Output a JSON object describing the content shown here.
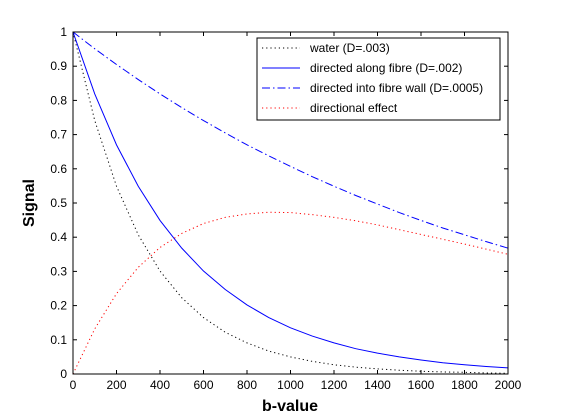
{
  "chart_data": {
    "type": "line",
    "title": "",
    "xlabel": "b-value",
    "ylabel": "Signal",
    "xlim": [
      0,
      2000
    ],
    "ylim": [
      0,
      1
    ],
    "x_ticks": [
      0,
      200,
      400,
      600,
      800,
      1000,
      1200,
      1400,
      1600,
      1800,
      2000
    ],
    "y_ticks": [
      0,
      0.1,
      0.2,
      0.3,
      0.4,
      0.5,
      0.6,
      0.7,
      0.8,
      0.9,
      1
    ],
    "grid": false,
    "legend_position": "top-right",
    "x": [
      0,
      100,
      200,
      300,
      400,
      500,
      600,
      700,
      800,
      900,
      1000,
      1100,
      1200,
      1300,
      1400,
      1500,
      1600,
      1700,
      1800,
      1900,
      2000
    ],
    "series": [
      {
        "name": "water (D=.003)",
        "color": "#000000",
        "style": "dotted",
        "values": [
          1,
          0.741,
          0.549,
          0.407,
          0.301,
          0.223,
          0.165,
          0.122,
          0.091,
          0.067,
          0.05,
          0.037,
          0.027,
          0.02,
          0.015,
          0.011,
          0.008,
          0.006,
          0.005,
          0.003,
          0.002
        ]
      },
      {
        "name": "directed along fibre (D=.002)",
        "color": "#0000ff",
        "style": "solid",
        "values": [
          1,
          0.819,
          0.67,
          0.549,
          0.449,
          0.368,
          0.301,
          0.247,
          0.202,
          0.165,
          0.135,
          0.111,
          0.091,
          0.074,
          0.061,
          0.05,
          0.041,
          0.033,
          0.027,
          0.022,
          0.018
        ]
      },
      {
        "name": "directed into fibre wall (D=.0005)",
        "color": "#0000ff",
        "style": "dashdot",
        "values": [
          1,
          0.951,
          0.905,
          0.861,
          0.819,
          0.779,
          0.741,
          0.705,
          0.67,
          0.638,
          0.607,
          0.577,
          0.549,
          0.522,
          0.497,
          0.472,
          0.449,
          0.427,
          0.407,
          0.387,
          0.368
        ]
      },
      {
        "name": "directional effect",
        "color": "#ff0000",
        "style": "dotted",
        "values": [
          0,
          0.132,
          0.235,
          0.312,
          0.37,
          0.411,
          0.44,
          0.458,
          0.468,
          0.473,
          0.472,
          0.466,
          0.458,
          0.448,
          0.436,
          0.422,
          0.408,
          0.394,
          0.38,
          0.365,
          0.35
        ]
      }
    ]
  }
}
